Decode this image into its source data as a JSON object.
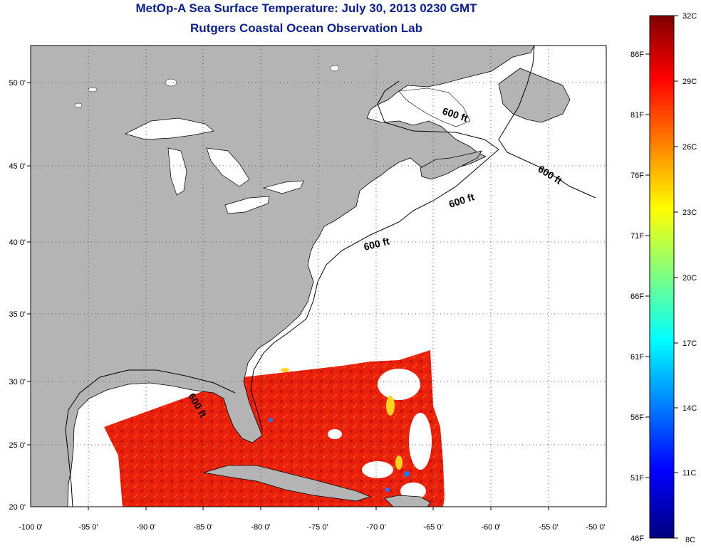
{
  "title": {
    "line1": "MetOp-A Sea Surface Temperature:  July 30, 2013 0230 GMT",
    "line2": "Rutgers Coastal Ocean Observation Lab"
  },
  "axes": {
    "lon_labels": [
      "-100 0'",
      "-95 0'",
      "-90 0'",
      "-85 0'",
      "-80 0'",
      "-75 0'",
      "-70 0'",
      "-65 0'",
      "-60 0'",
      "-55 0'",
      "-50 0'"
    ],
    "lat_labels": [
      "20 0'",
      "25 0'",
      "30 0'",
      "35 0'",
      "40 0'",
      "45 0'",
      "50 0'"
    ]
  },
  "contour_labels": [
    "600 ft",
    "600 ft",
    "600 ft",
    "600 ft",
    "600 ft"
  ],
  "colorbar": {
    "celsius": [
      "32C",
      "29C",
      "26C",
      "23C",
      "20C",
      "17C",
      "14C",
      "11C",
      "8C"
    ],
    "fahrenheit": [
      "86F",
      "81F",
      "76F",
      "71F",
      "66F",
      "61F",
      "56F",
      "51F",
      "46F"
    ]
  },
  "colors": {
    "land": "#b4b4b4",
    "ocean": "#ffffff",
    "title": "#0a1e8c",
    "sst_warm": "#e8200c"
  }
}
